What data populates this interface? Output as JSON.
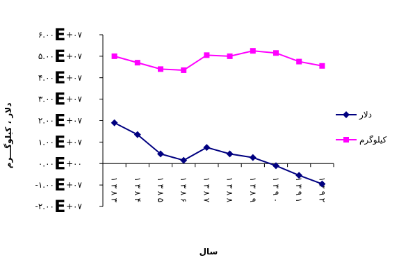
{
  "chart_data": {
    "type": "line",
    "xlabel": "سال",
    "ylabel": "دلار ، کيلوگـــرم",
    "categories": [
      "۱۳۸۳‌",
      "۱۳۸۴‌",
      "۱۳۸۵‌",
      "۱۳۸۶‌",
      "۱۳۸۷‌",
      "۱۳۸۸‌",
      "۱۳۸۹‌",
      "۱۳۹۰‌",
      "۱۳۹۱‌",
      "۱۳۹۲‌"
    ],
    "category_labels": [
      [
        "۱",
        "۳",
        "۸",
        "۳"
      ],
      [
        "۱",
        "۳",
        "۸",
        "۴"
      ],
      [
        "۱",
        "۳",
        "۸",
        "۵"
      ],
      [
        "۱",
        "۳",
        "۸",
        "۶"
      ],
      [
        "۱",
        "۳",
        "۸",
        "۷"
      ],
      [
        "۱",
        "۳",
        "۸",
        "۸"
      ],
      [
        "۱",
        "۳",
        "۸",
        "۹"
      ],
      [
        "۱",
        "۳",
        "۹",
        "۰"
      ],
      [
        "۱",
        "۳",
        "۹",
        "۱"
      ],
      [
        "۱",
        "۳",
        "۹",
        "۲"
      ]
    ],
    "y_ticks": [
      {
        "value": 60000000,
        "prefix": "۶.۰۰",
        "suffix": "+۰۷"
      },
      {
        "value": 50000000,
        "prefix": "۵.۰۰",
        "suffix": "+۰۷"
      },
      {
        "value": 40000000,
        "prefix": "۴.۰۰",
        "suffix": "+۰۷"
      },
      {
        "value": 30000000,
        "prefix": "۳.۰۰",
        "suffix": "+۰۷"
      },
      {
        "value": 20000000,
        "prefix": "۲.۰۰",
        "suffix": "+۰۷"
      },
      {
        "value": 10000000,
        "prefix": "۱.۰۰",
        "suffix": "+۰۷"
      },
      {
        "value": 0,
        "prefix": "۰.۰۰",
        "suffix": "+۰۰"
      },
      {
        "value": -10000000,
        "prefix": "-۱.۰۰",
        "suffix": "+۰۷"
      },
      {
        "value": -20000000,
        "prefix": "-۲.۰۰",
        "suffix": "+۰۷"
      }
    ],
    "ylim": [
      -20000000,
      60000000
    ],
    "grid": false,
    "legend_position": "right",
    "series": [
      {
        "name": "دلار",
        "color": "#000080",
        "marker": "diamond",
        "values": [
          19000000,
          13500000,
          4500000,
          1500000,
          7500000,
          4500000,
          2800000,
          -1000000,
          -5500000,
          -9500000
        ]
      },
      {
        "name": "کيلوگرم",
        "color": "#ff00ff",
        "marker": "square",
        "values": [
          50000000,
          47000000,
          44000000,
          43500000,
          50500000,
          50000000,
          52500000,
          51500000,
          47500000,
          45500000
        ]
      }
    ]
  }
}
